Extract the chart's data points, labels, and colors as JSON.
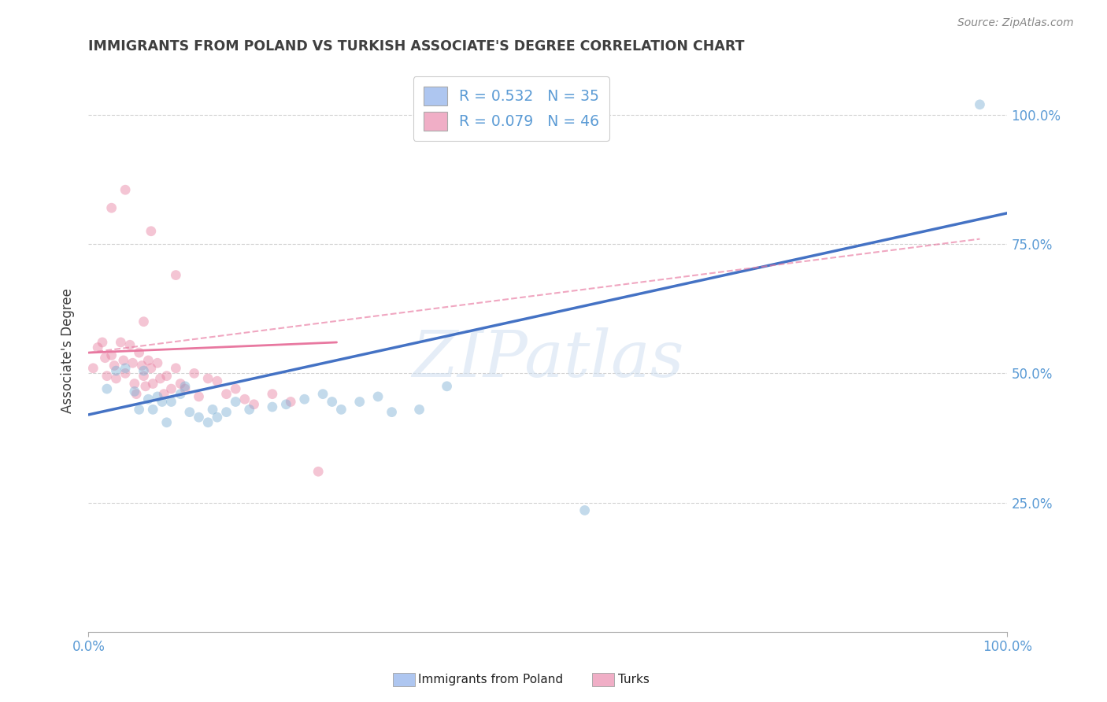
{
  "title": "IMMIGRANTS FROM POLAND VS TURKISH ASSOCIATE'S DEGREE CORRELATION CHART",
  "source": "Source: ZipAtlas.com",
  "ylabel": "Associate's Degree",
  "xlim": [
    0.0,
    1.0
  ],
  "ylim": [
    0.0,
    1.1
  ],
  "xtick_values": [
    0.0,
    1.0
  ],
  "xtick_labels": [
    "0.0%",
    "100.0%"
  ],
  "ytick_values": [
    0.25,
    0.5,
    0.75,
    1.0
  ],
  "ytick_labels": [
    "25.0%",
    "50.0%",
    "75.0%",
    "100.0%"
  ],
  "poland_color": "#7bafd4",
  "turks_color": "#e87fa0",
  "poland_line_color": "#4472c4",
  "turks_line_color": "#e878a0",
  "poland_legend_color": "#aec6f0",
  "turks_legend_color": "#f0aec6",
  "legend_label_1": "R = 0.532   N = 35",
  "legend_label_2": "R = 0.079   N = 46",
  "bottom_legend_1": "Immigrants from Poland",
  "bottom_legend_2": "Turks",
  "poland_scatter": [
    [
      0.02,
      0.47
    ],
    [
      0.03,
      0.505
    ],
    [
      0.04,
      0.51
    ],
    [
      0.05,
      0.465
    ],
    [
      0.055,
      0.43
    ],
    [
      0.06,
      0.505
    ],
    [
      0.065,
      0.45
    ],
    [
      0.07,
      0.43
    ],
    [
      0.075,
      0.455
    ],
    [
      0.08,
      0.445
    ],
    [
      0.085,
      0.405
    ],
    [
      0.09,
      0.445
    ],
    [
      0.1,
      0.46
    ],
    [
      0.105,
      0.475
    ],
    [
      0.11,
      0.425
    ],
    [
      0.12,
      0.415
    ],
    [
      0.13,
      0.405
    ],
    [
      0.135,
      0.43
    ],
    [
      0.14,
      0.415
    ],
    [
      0.15,
      0.425
    ],
    [
      0.16,
      0.445
    ],
    [
      0.175,
      0.43
    ],
    [
      0.2,
      0.435
    ],
    [
      0.215,
      0.44
    ],
    [
      0.235,
      0.45
    ],
    [
      0.255,
      0.46
    ],
    [
      0.265,
      0.445
    ],
    [
      0.275,
      0.43
    ],
    [
      0.295,
      0.445
    ],
    [
      0.315,
      0.455
    ],
    [
      0.33,
      0.425
    ],
    [
      0.36,
      0.43
    ],
    [
      0.39,
      0.475
    ],
    [
      0.54,
      0.235
    ],
    [
      0.97,
      1.02
    ]
  ],
  "turks_scatter": [
    [
      0.005,
      0.51
    ],
    [
      0.01,
      0.55
    ],
    [
      0.015,
      0.56
    ],
    [
      0.018,
      0.53
    ],
    [
      0.02,
      0.495
    ],
    [
      0.025,
      0.535
    ],
    [
      0.028,
      0.515
    ],
    [
      0.03,
      0.49
    ],
    [
      0.035,
      0.56
    ],
    [
      0.038,
      0.525
    ],
    [
      0.04,
      0.5
    ],
    [
      0.045,
      0.555
    ],
    [
      0.048,
      0.52
    ],
    [
      0.05,
      0.48
    ],
    [
      0.052,
      0.46
    ],
    [
      0.055,
      0.54
    ],
    [
      0.058,
      0.515
    ],
    [
      0.06,
      0.495
    ],
    [
      0.062,
      0.475
    ],
    [
      0.065,
      0.525
    ],
    [
      0.068,
      0.51
    ],
    [
      0.07,
      0.48
    ],
    [
      0.075,
      0.52
    ],
    [
      0.078,
      0.49
    ],
    [
      0.082,
      0.46
    ],
    [
      0.085,
      0.495
    ],
    [
      0.09,
      0.47
    ],
    [
      0.095,
      0.51
    ],
    [
      0.1,
      0.48
    ],
    [
      0.105,
      0.47
    ],
    [
      0.115,
      0.5
    ],
    [
      0.12,
      0.455
    ],
    [
      0.13,
      0.49
    ],
    [
      0.14,
      0.485
    ],
    [
      0.15,
      0.46
    ],
    [
      0.16,
      0.47
    ],
    [
      0.17,
      0.45
    ],
    [
      0.18,
      0.44
    ],
    [
      0.2,
      0.46
    ],
    [
      0.22,
      0.445
    ],
    [
      0.25,
      0.31
    ],
    [
      0.06,
      0.6
    ],
    [
      0.095,
      0.69
    ],
    [
      0.068,
      0.775
    ],
    [
      0.025,
      0.82
    ],
    [
      0.04,
      0.855
    ]
  ],
  "poland_line_x": [
    0.0,
    1.0
  ],
  "poland_line_y": [
    0.42,
    0.81
  ],
  "turks_solid_line_x": [
    0.0,
    0.27
  ],
  "turks_solid_line_y": [
    0.54,
    0.56
  ],
  "turks_dashed_line_x": [
    0.0,
    0.97
  ],
  "turks_dashed_line_y": [
    0.54,
    0.76
  ],
  "watermark_text": "ZIPatlas",
  "background_color": "#ffffff",
  "grid_color": "#cccccc",
  "title_color": "#3f3f3f",
  "axis_color": "#5b9bd5",
  "marker_size": 85,
  "marker_alpha": 0.45
}
